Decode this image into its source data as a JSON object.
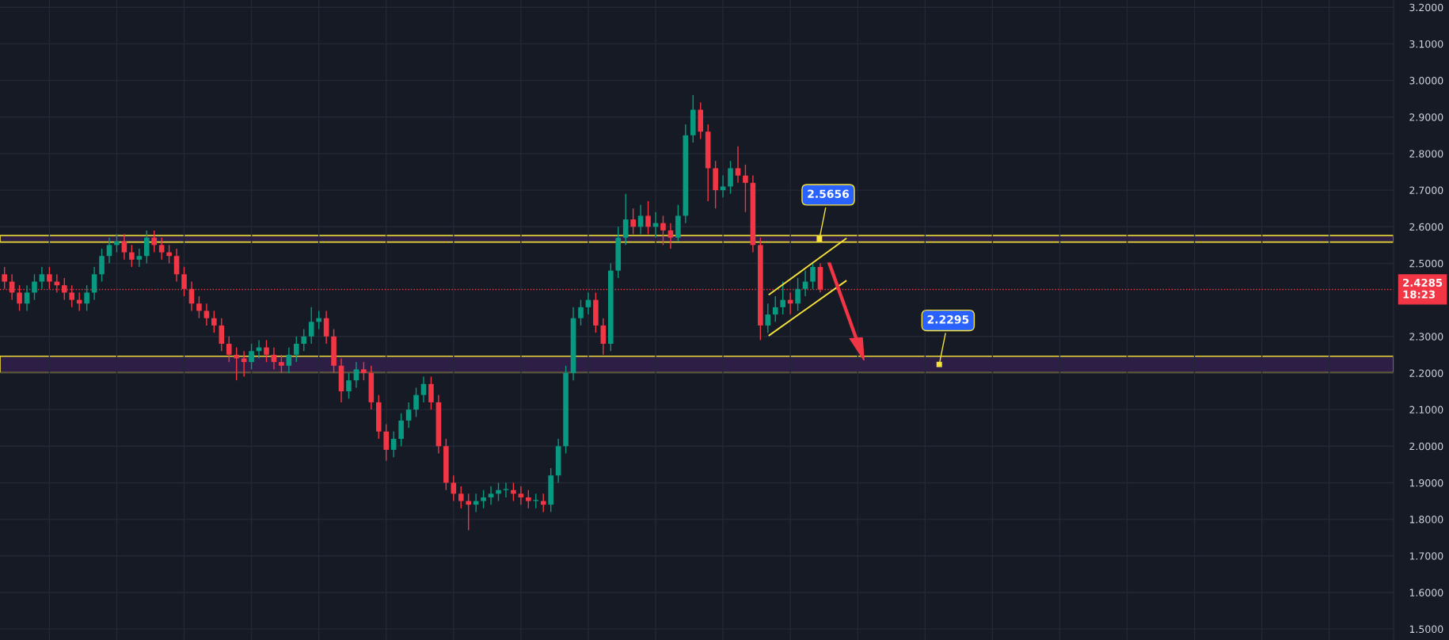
{
  "chart_data": {
    "type": "candlestick",
    "categories": [
      null,
      null,
      null,
      null,
      null,
      null,
      null,
      null,
      null,
      null,
      null,
      null,
      null,
      null,
      null,
      null,
      null,
      null,
      null,
      null,
      null,
      null,
      null,
      null,
      null,
      null,
      null,
      null,
      null,
      null,
      null,
      null,
      null,
      null,
      null,
      null,
      null,
      null,
      null,
      null,
      null,
      null,
      null,
      null,
      null,
      null,
      null,
      null,
      null,
      null,
      null,
      null,
      null,
      null,
      null,
      null,
      null,
      null,
      null,
      null,
      null,
      null,
      null,
      null,
      null,
      null,
      null,
      null,
      null,
      null,
      null,
      null,
      null,
      null,
      null,
      null,
      null,
      null,
      null,
      null,
      null,
      null,
      null,
      null,
      null,
      null,
      null,
      null,
      null,
      null,
      null,
      null,
      null,
      null,
      null,
      null,
      null,
      null,
      null,
      null,
      null,
      null,
      null,
      null,
      null,
      null,
      null,
      null,
      null,
      null,
      null,
      null,
      null,
      null,
      null,
      null,
      null,
      null,
      null,
      null,
      null,
      null,
      null,
      null,
      null,
      null,
      null,
      null,
      null,
      null,
      null,
      null,
      null,
      null,
      null,
      null,
      null,
      null,
      null,
      null,
      null,
      null,
      null,
      null,
      null,
      null,
      null,
      null,
      null,
      null,
      null,
      null,
      null,
      null,
      null,
      null,
      null,
      null,
      null,
      null,
      null,
      null,
      null,
      null,
      null,
      null,
      null,
      null,
      null,
      null,
      null,
      null,
      null,
      null,
      null,
      null,
      null,
      null,
      null,
      null,
      null,
      null,
      null,
      null,
      null,
      null
    ],
    "ohlc": [
      [
        2.47,
        2.49,
        2.43,
        2.45
      ],
      [
        2.45,
        2.47,
        2.4,
        2.42
      ],
      [
        2.42,
        2.44,
        2.37,
        2.39
      ],
      [
        2.39,
        2.44,
        2.37,
        2.42
      ],
      [
        2.42,
        2.47,
        2.4,
        2.45
      ],
      [
        2.45,
        2.49,
        2.43,
        2.47
      ],
      [
        2.47,
        2.49,
        2.43,
        2.45
      ],
      [
        2.45,
        2.47,
        2.42,
        2.44
      ],
      [
        2.44,
        2.46,
        2.4,
        2.42
      ],
      [
        2.42,
        2.44,
        2.38,
        2.4
      ],
      [
        2.4,
        2.42,
        2.37,
        2.39
      ],
      [
        2.39,
        2.44,
        2.37,
        2.42
      ],
      [
        2.42,
        2.49,
        2.4,
        2.47
      ],
      [
        2.47,
        2.54,
        2.45,
        2.52
      ],
      [
        2.52,
        2.57,
        2.5,
        2.55
      ],
      [
        2.55,
        2.58,
        2.53,
        2.56
      ],
      [
        2.56,
        2.58,
        2.51,
        2.53
      ],
      [
        2.53,
        2.55,
        2.49,
        2.51
      ],
      [
        2.51,
        2.54,
        2.49,
        2.52
      ],
      [
        2.52,
        2.59,
        2.5,
        2.57
      ],
      [
        2.57,
        2.59,
        2.53,
        2.55
      ],
      [
        2.55,
        2.57,
        2.51,
        2.53
      ],
      [
        2.53,
        2.55,
        2.5,
        2.52
      ],
      [
        2.52,
        2.54,
        2.45,
        2.47
      ],
      [
        2.47,
        2.49,
        2.41,
        2.43
      ],
      [
        2.43,
        2.45,
        2.37,
        2.39
      ],
      [
        2.39,
        2.41,
        2.35,
        2.37
      ],
      [
        2.37,
        2.39,
        2.33,
        2.35
      ],
      [
        2.35,
        2.37,
        2.31,
        2.33
      ],
      [
        2.33,
        2.35,
        2.26,
        2.28
      ],
      [
        2.28,
        2.3,
        2.23,
        2.25
      ],
      [
        2.25,
        2.27,
        2.18,
        2.24
      ],
      [
        2.24,
        2.26,
        2.19,
        2.23
      ],
      [
        2.23,
        2.28,
        2.21,
        2.26
      ],
      [
        2.26,
        2.29,
        2.24,
        2.27
      ],
      [
        2.27,
        2.29,
        2.23,
        2.25
      ],
      [
        2.25,
        2.27,
        2.21,
        2.23
      ],
      [
        2.23,
        2.25,
        2.2,
        2.22
      ],
      [
        2.22,
        2.27,
        2.2,
        2.25
      ],
      [
        2.25,
        2.3,
        2.23,
        2.28
      ],
      [
        2.28,
        2.32,
        2.26,
        2.3
      ],
      [
        2.3,
        2.38,
        2.28,
        2.34
      ],
      [
        2.34,
        2.37,
        2.32,
        2.35
      ],
      [
        2.35,
        2.37,
        2.28,
        2.3
      ],
      [
        2.3,
        2.32,
        2.2,
        2.22
      ],
      [
        2.22,
        2.24,
        2.12,
        2.15
      ],
      [
        2.15,
        2.2,
        2.13,
        2.18
      ],
      [
        2.18,
        2.23,
        2.16,
        2.21
      ],
      [
        2.21,
        2.23,
        2.18,
        2.2
      ],
      [
        2.2,
        2.22,
        2.1,
        2.12
      ],
      [
        2.12,
        2.14,
        2.02,
        2.04
      ],
      [
        2.04,
        2.06,
        1.96,
        1.99
      ],
      [
        1.99,
        2.04,
        1.97,
        2.02
      ],
      [
        2.02,
        2.09,
        2.0,
        2.07
      ],
      [
        2.07,
        2.12,
        2.05,
        2.1
      ],
      [
        2.1,
        2.16,
        2.08,
        2.14
      ],
      [
        2.14,
        2.19,
        2.12,
        2.17
      ],
      [
        2.17,
        2.19,
        2.1,
        2.12
      ],
      [
        2.12,
        2.14,
        1.98,
        2.0
      ],
      [
        2.0,
        2.02,
        1.88,
        1.9
      ],
      [
        1.9,
        1.92,
        1.85,
        1.87
      ],
      [
        1.87,
        1.89,
        1.83,
        1.85
      ],
      [
        1.85,
        1.87,
        1.77,
        1.84
      ],
      [
        1.84,
        1.87,
        1.82,
        1.85
      ],
      [
        1.85,
        1.88,
        1.83,
        1.86
      ],
      [
        1.86,
        1.89,
        1.84,
        1.87
      ],
      [
        1.87,
        1.9,
        1.85,
        1.88
      ],
      [
        1.88,
        1.9,
        1.86,
        1.88
      ],
      [
        1.88,
        1.9,
        1.85,
        1.87
      ],
      [
        1.87,
        1.89,
        1.84,
        1.86
      ],
      [
        1.86,
        1.88,
        1.83,
        1.85
      ],
      [
        1.85,
        1.87,
        1.83,
        1.85
      ],
      [
        1.85,
        1.87,
        1.82,
        1.84
      ],
      [
        1.84,
        1.94,
        1.82,
        1.92
      ],
      [
        1.92,
        2.02,
        1.9,
        2.0
      ],
      [
        2.0,
        2.22,
        1.98,
        2.2
      ],
      [
        2.2,
        2.38,
        2.18,
        2.35
      ],
      [
        2.35,
        2.4,
        2.33,
        2.38
      ],
      [
        2.38,
        2.42,
        2.36,
        2.4
      ],
      [
        2.4,
        2.42,
        2.31,
        2.33
      ],
      [
        2.33,
        2.35,
        2.25,
        2.28
      ],
      [
        2.28,
        2.5,
        2.26,
        2.48
      ],
      [
        2.48,
        2.6,
        2.46,
        2.57
      ],
      [
        2.57,
        2.69,
        2.55,
        2.62
      ],
      [
        2.62,
        2.65,
        2.58,
        2.6
      ],
      [
        2.6,
        2.66,
        2.58,
        2.63
      ],
      [
        2.63,
        2.67,
        2.58,
        2.6
      ],
      [
        2.6,
        2.64,
        2.57,
        2.61
      ],
      [
        2.61,
        2.63,
        2.55,
        2.59
      ],
      [
        2.59,
        2.61,
        2.54,
        2.57
      ],
      [
        2.57,
        2.66,
        2.56,
        2.63
      ],
      [
        2.63,
        2.88,
        2.61,
        2.85
      ],
      [
        2.85,
        2.96,
        2.83,
        2.92
      ],
      [
        2.92,
        2.94,
        2.84,
        2.86
      ],
      [
        2.86,
        2.88,
        2.67,
        2.76
      ],
      [
        2.76,
        2.78,
        2.65,
        2.7
      ],
      [
        2.7,
        2.74,
        2.68,
        2.71
      ],
      [
        2.71,
        2.78,
        2.69,
        2.76
      ],
      [
        2.76,
        2.82,
        2.72,
        2.74
      ],
      [
        2.74,
        2.77,
        2.64,
        2.72
      ],
      [
        2.72,
        2.74,
        2.53,
        2.55
      ],
      [
        2.55,
        2.57,
        2.29,
        2.33
      ],
      [
        2.33,
        2.39,
        2.31,
        2.36
      ],
      [
        2.36,
        2.41,
        2.34,
        2.38
      ],
      [
        2.38,
        2.45,
        2.36,
        2.4
      ],
      [
        2.4,
        2.42,
        2.36,
        2.39
      ],
      [
        2.39,
        2.46,
        2.37,
        2.43
      ],
      [
        2.43,
        2.48,
        2.41,
        2.45
      ],
      [
        2.45,
        2.5,
        2.43,
        2.49
      ],
      [
        2.49,
        2.5,
        2.42,
        2.4285
      ],
      null,
      null,
      null,
      null,
      null,
      null,
      null,
      null,
      null,
      null,
      null,
      null,
      null,
      null,
      null,
      null,
      null,
      null,
      null,
      null,
      null,
      null,
      null,
      null,
      null,
      null,
      null,
      null,
      null,
      null,
      null,
      null,
      null,
      null,
      null,
      null,
      null,
      null,
      null,
      null,
      null,
      null,
      null,
      null,
      null,
      null,
      null,
      null,
      null,
      null,
      null,
      null,
      null,
      null,
      null,
      null,
      null,
      null,
      null,
      null,
      null,
      null,
      null,
      null,
      null,
      null,
      null,
      null,
      null,
      null,
      null,
      null,
      null,
      null,
      null,
      null
    ],
    "ylim": [
      1.47,
      3.22
    ],
    "yticks": [
      {
        "value": 1.5,
        "label": "1.5000"
      },
      {
        "value": 1.6,
        "label": "1.6000"
      },
      {
        "value": 1.7,
        "label": "1.7000"
      },
      {
        "value": 1.8,
        "label": "1.8000"
      },
      {
        "value": 1.9,
        "label": "1.9000"
      },
      {
        "value": 2.0,
        "label": "2.0000"
      },
      {
        "value": 2.1,
        "label": "2.1000"
      },
      {
        "value": 2.2,
        "label": "2.2000"
      },
      {
        "value": 2.3,
        "label": "2.3000"
      },
      {
        "value": 2.5,
        "label": "2.5000"
      },
      {
        "value": 2.6,
        "label": "2.6000"
      },
      {
        "value": 2.7,
        "label": "2.7000"
      },
      {
        "value": 2.8,
        "label": "2.8000"
      },
      {
        "value": 2.9,
        "label": "2.9000"
      },
      {
        "value": 3.0,
        "label": "3.0000"
      },
      {
        "value": 3.1,
        "label": "3.1000"
      },
      {
        "value": 3.2,
        "label": "3.2000"
      }
    ],
    "grid": true,
    "tick_labels": "y",
    "bands": [
      {
        "axis": "y",
        "from": 2.558,
        "to": 2.576,
        "label": "2.5656",
        "color": "#2e1f47"
      },
      {
        "axis": "y",
        "from": 2.201,
        "to": 2.246,
        "label": "2.2295",
        "color": "#2e1f47"
      }
    ],
    "ref_lines": [
      {
        "axis": "y",
        "value": 2.4285,
        "label": "2.4285\n18:23",
        "color": "#f23645",
        "line_style": "dotted"
      }
    ]
  }
}
